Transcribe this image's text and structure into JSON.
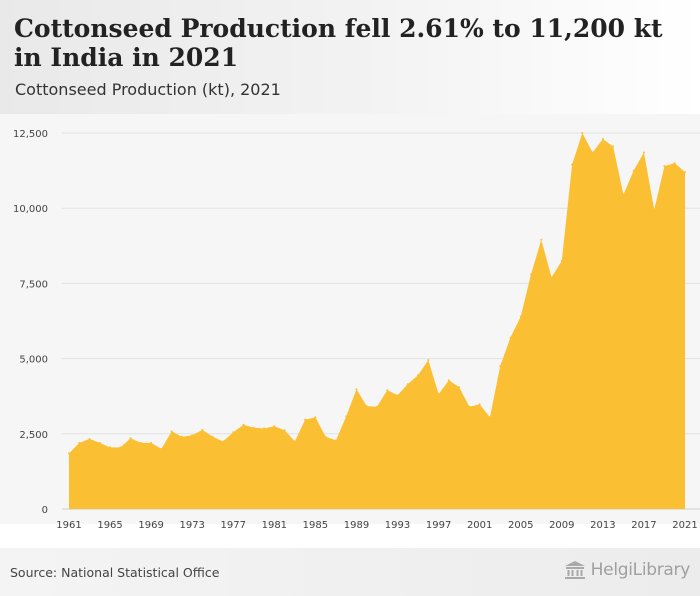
{
  "header": {
    "title": "Cottonseed Production fell 2.61% to 11,200 kt in India in 2021",
    "subtitle": "Cottonseed Production (kt), 2021"
  },
  "footer": {
    "source": "Source: National Statistical Office",
    "logo_text": "HelgiLibrary",
    "logo_icon": "bank-building-icon"
  },
  "colors": {
    "area": "#fbbf34",
    "grid": "#e2e2e2",
    "axis_text": "#444444",
    "plot_background": "#f6f6f6"
  },
  "chart_data": {
    "type": "area",
    "x": [
      1961,
      1962,
      1963,
      1964,
      1965,
      1966,
      1967,
      1968,
      1969,
      1970,
      1971,
      1972,
      1973,
      1974,
      1975,
      1976,
      1977,
      1978,
      1979,
      1980,
      1981,
      1982,
      1983,
      1984,
      1985,
      1986,
      1987,
      1988,
      1989,
      1990,
      1991,
      1992,
      1993,
      1994,
      1995,
      1996,
      1997,
      1998,
      1999,
      2000,
      2001,
      2002,
      2003,
      2004,
      2005,
      2006,
      2007,
      2008,
      2009,
      2010,
      2011,
      2012,
      2013,
      2014,
      2015,
      2016,
      2017,
      2018,
      2019,
      2020,
      2021
    ],
    "series": [
      {
        "values": [
          1850,
          2200,
          2330,
          2200,
          2050,
          2050,
          2350,
          2200,
          2200,
          2000,
          2580,
          2400,
          2450,
          2630,
          2400,
          2250,
          2550,
          2800,
          2700,
          2680,
          2750,
          2620,
          2250,
          2970,
          3050,
          2400,
          2280,
          3080,
          3980,
          3420,
          3400,
          3950,
          3780,
          4150,
          4450,
          4950,
          3820,
          4280,
          4050,
          3400,
          3480,
          3050,
          4750,
          5700,
          6400,
          7800,
          8950,
          7700,
          8250,
          11450,
          12500,
          11850,
          12300,
          12050,
          10450,
          11250,
          11850,
          9950,
          11400,
          11500,
          11200
        ]
      }
    ],
    "xticks": [
      "1961",
      "1965",
      "1969",
      "1973",
      "1977",
      "1981",
      "1985",
      "1989",
      "1993",
      "1997",
      "2001",
      "2005",
      "2009",
      "2013",
      "2017",
      "2021"
    ],
    "yticks": [
      "0",
      "2,500",
      "5,000",
      "7,500",
      "10,000",
      "12,500"
    ],
    "ytick_values": [
      0,
      2500,
      5000,
      7500,
      10000,
      12500
    ],
    "xlim": [
      1961,
      2021
    ],
    "ylim": [
      0,
      12500
    ],
    "grid": true,
    "legend": "none"
  }
}
